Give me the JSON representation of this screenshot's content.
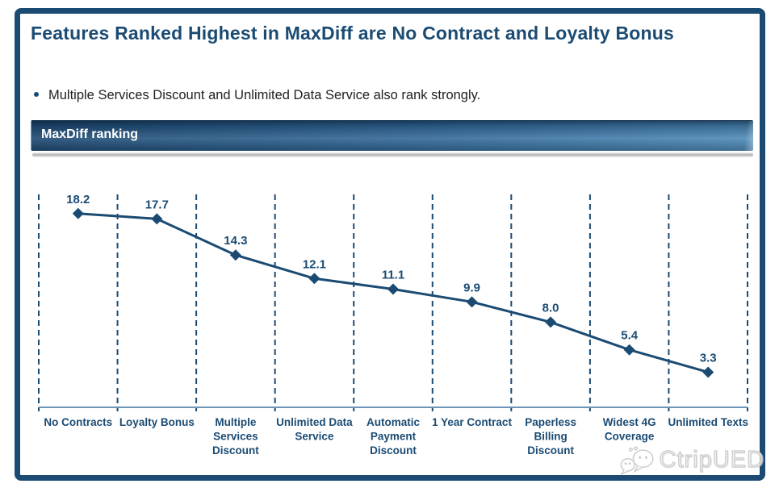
{
  "slide": {
    "title": "Features Ranked Highest in MaxDiff are No Contract and Loyalty Bonus",
    "bullet": "Multiple Services Discount and Unlimited Data Service also rank strongly.",
    "section_header": "MaxDiff ranking",
    "watermark": "CtripUED"
  },
  "colors": {
    "navy": "#1B4B73",
    "axis": "#6E95B7",
    "banner_dark": "#1E4A73",
    "banner_mid": "#336A9A",
    "banner_light": "#4E8AB8",
    "body_text": "#212121",
    "watermark_gray": "#C8C8C8"
  },
  "icons": {
    "bullet": "dot",
    "watermark_logo": "chat-bubbles"
  },
  "chart_data": {
    "type": "line",
    "title": "MaxDiff ranking",
    "categories": [
      "No Contracts",
      "Loyalty Bonus",
      "Multiple\nServices\nDiscount",
      "Unlimited Data\nService",
      "Automatic\nPayment\nDiscount",
      "1 Year Contract",
      "Paperless\nBilling\nDiscount",
      "Widest 4G\nCoverage",
      "Unlimited Texts"
    ],
    "values": [
      18.2,
      17.7,
      14.3,
      12.1,
      11.1,
      9.9,
      8.0,
      5.4,
      3.3
    ],
    "xlabel": "",
    "ylabel": "",
    "ylim": [
      0,
      20
    ],
    "grid": "vertical-dashed",
    "marker": "diamond",
    "legend": false,
    "data_labels_shown": true
  }
}
